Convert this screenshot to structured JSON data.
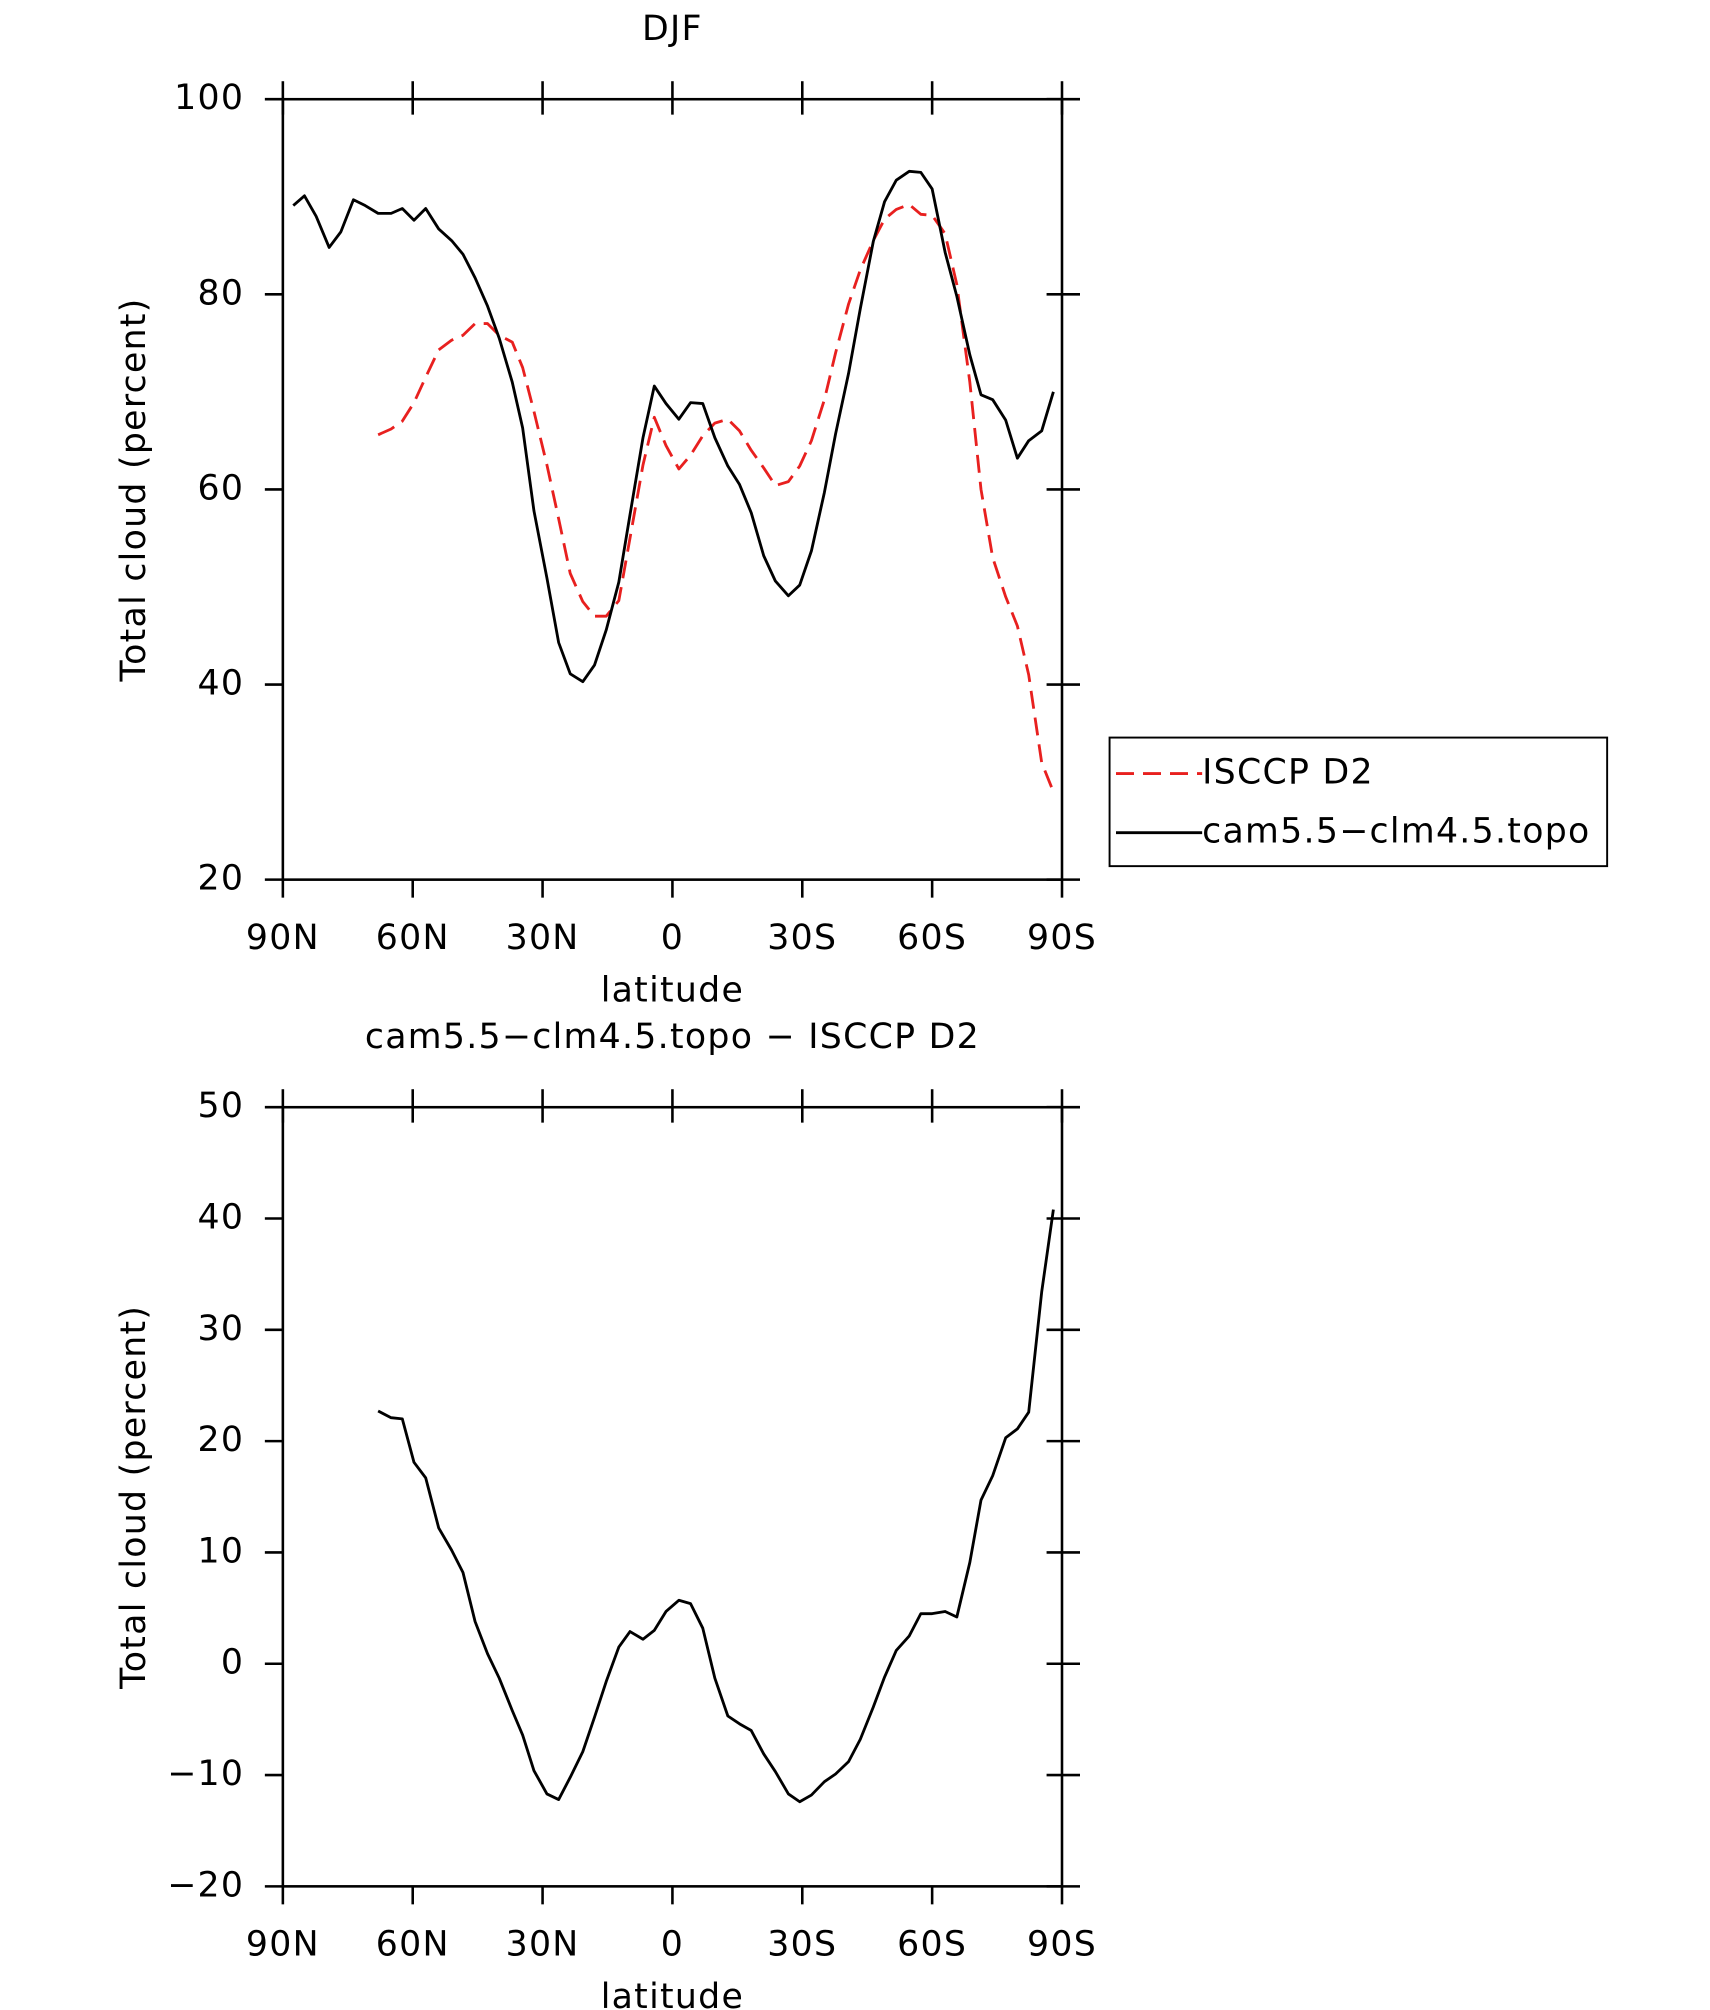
{
  "chart_data": [
    {
      "type": "line",
      "title": "DJF",
      "xlabel": "latitude",
      "ylabel": "Total cloud (percent)",
      "xlim": [
        90,
        -90
      ],
      "xticks": [
        {
          "value": 90,
          "label": "90N"
        },
        {
          "value": 60,
          "label": "60N"
        },
        {
          "value": 30,
          "label": "30N"
        },
        0,
        {
          "value": -30,
          "label": "30S"
        },
        {
          "value": -60,
          "label": "60S"
        },
        {
          "value": -90,
          "label": "90S"
        }
      ],
      "ylim": [
        20,
        100
      ],
      "yticks": [
        20,
        40,
        60,
        80,
        100
      ],
      "legend": "right",
      "x": [
        87.6,
        85,
        82.3,
        79.3,
        76.6,
        73.7,
        71,
        68,
        65,
        62.4,
        59.7,
        57,
        54,
        51,
        48.4,
        45.6,
        42.7,
        40,
        37,
        34.6,
        32,
        29,
        26.3,
        23.6,
        20.7,
        18,
        15.3,
        12.4,
        9.8,
        6.8,
        4.2,
        1.5,
        -1.5,
        -4.2,
        -7,
        -9.8,
        -12.8,
        -15.5,
        -18.2,
        -21.1,
        -23.8,
        -26.8,
        -29.4,
        -32.1,
        -35.1,
        -37.7,
        -40.7,
        -43.4,
        -46.4,
        -49,
        -51.7,
        -54.7,
        -57.4,
        -60,
        -63,
        -65.7,
        -68.7,
        -71.3,
        -74,
        -77,
        -79.7,
        -82.3,
        -85.3,
        -88
      ],
      "series": [
        {
          "name": "ISCCP D2",
          "color": "#e8201f",
          "dash": true,
          "values": [
            null,
            null,
            null,
            null,
            null,
            null,
            null,
            65.6,
            66.2,
            67,
            68.9,
            71.5,
            74.3,
            75.3,
            75.8,
            77,
            77,
            75.8,
            75.1,
            72.5,
            68,
            62.5,
            57,
            51.4,
            48.5,
            47,
            47,
            48.6,
            55,
            62.5,
            67.4,
            64.5,
            62.1,
            63.5,
            65.5,
            66.8,
            67.2,
            66,
            64,
            62.2,
            60.4,
            60.8,
            62.4,
            65,
            69.2,
            74,
            79,
            82.5,
            85.5,
            87.7,
            88.7,
            89.2,
            88.2,
            88.1,
            86.2,
            81,
            71,
            60,
            53,
            49,
            46,
            41,
            32,
            29
          ]
        },
        {
          "name": "cam5.5−clm4.5.topo",
          "color": "#000000",
          "dash": false,
          "values": [
            89.1,
            90.1,
            88,
            84.8,
            86.4,
            89.7,
            89.1,
            88.3,
            88.3,
            88.8,
            87.6,
            88.8,
            86.7,
            85.5,
            84.1,
            81.7,
            78.8,
            75.5,
            71,
            66.3,
            57.8,
            50.9,
            44.3,
            41.1,
            40.3,
            42,
            45.6,
            50.5,
            57.4,
            65.3,
            70.6,
            68.8,
            67.2,
            68.9,
            68.8,
            65.3,
            62.4,
            60.5,
            57.6,
            53.2,
            50.6,
            49.1,
            50.2,
            53.7,
            59.7,
            65.7,
            71.9,
            78.5,
            85.4,
            89.5,
            91.7,
            92.6,
            92.5,
            90.8,
            84.3,
            79.8,
            73.8,
            69.7,
            69.2,
            67.1,
            63.2,
            65,
            66,
            70
          ]
        }
      ]
    },
    {
      "type": "line",
      "title": "cam5.5−clm4.5.topo − ISCCP D2",
      "xlabel": "latitude",
      "ylabel": "Total cloud (percent)",
      "xlim": [
        90,
        -90
      ],
      "xticks": [
        {
          "value": 90,
          "label": "90N"
        },
        {
          "value": 60,
          "label": "60N"
        },
        {
          "value": 30,
          "label": "30N"
        },
        0,
        {
          "value": -30,
          "label": "30S"
        },
        {
          "value": -60,
          "label": "60S"
        },
        {
          "value": -90,
          "label": "90S"
        }
      ],
      "ylim": [
        -20,
        50
      ],
      "yticks": [
        {
          "value": -20,
          "label": "−20"
        },
        {
          "value": -10,
          "label": "−10"
        },
        0,
        10,
        20,
        30,
        40,
        50
      ],
      "x": [
        87.6,
        85,
        82.3,
        79.3,
        76.6,
        73.7,
        71,
        68,
        65,
        62.4,
        59.7,
        57,
        54,
        51,
        48.4,
        45.6,
        42.7,
        40,
        37,
        34.6,
        32,
        29,
        26.3,
        23.6,
        20.7,
        18,
        15.3,
        12.4,
        9.8,
        6.8,
        4.2,
        1.5,
        -1.5,
        -4.2,
        -7,
        -9.8,
        -12.8,
        -15.5,
        -18.2,
        -21.1,
        -23.8,
        -26.8,
        -29.4,
        -32.1,
        -35.1,
        -37.7,
        -40.7,
        -43.4,
        -46.4,
        -49,
        -51.7,
        -54.7,
        -57.4,
        -60,
        -63,
        -65.7,
        -68.7,
        -71.3,
        -74,
        -77,
        -79.7,
        -82.3,
        -85.3,
        -88
      ],
      "series": [
        {
          "color": "#000000",
          "dash": false,
          "values": [
            null,
            null,
            null,
            null,
            null,
            null,
            null,
            22.7,
            22.1,
            22,
            18.1,
            16.7,
            12.2,
            10.2,
            8.2,
            3.8,
            0.9,
            -1.3,
            -4.2,
            -6.4,
            -9.6,
            -11.7,
            -12.2,
            -10.2,
            -7.9,
            -4.8,
            -1.6,
            1.5,
            2.9,
            2.2,
            3,
            4.7,
            5.7,
            5.4,
            3.2,
            -1.3,
            -4.7,
            -5.4,
            -6,
            -8.1,
            -9.7,
            -11.7,
            -12.4,
            -11.8,
            -10.6,
            -9.9,
            -8.8,
            -6.8,
            -3.9,
            -1.2,
            1.2,
            2.5,
            4.5,
            4.5,
            4.7,
            4.2,
            9.1,
            14.7,
            16.9,
            20.3,
            21.1,
            22.6,
            33.4,
            40.8
          ]
        }
      ]
    }
  ]
}
